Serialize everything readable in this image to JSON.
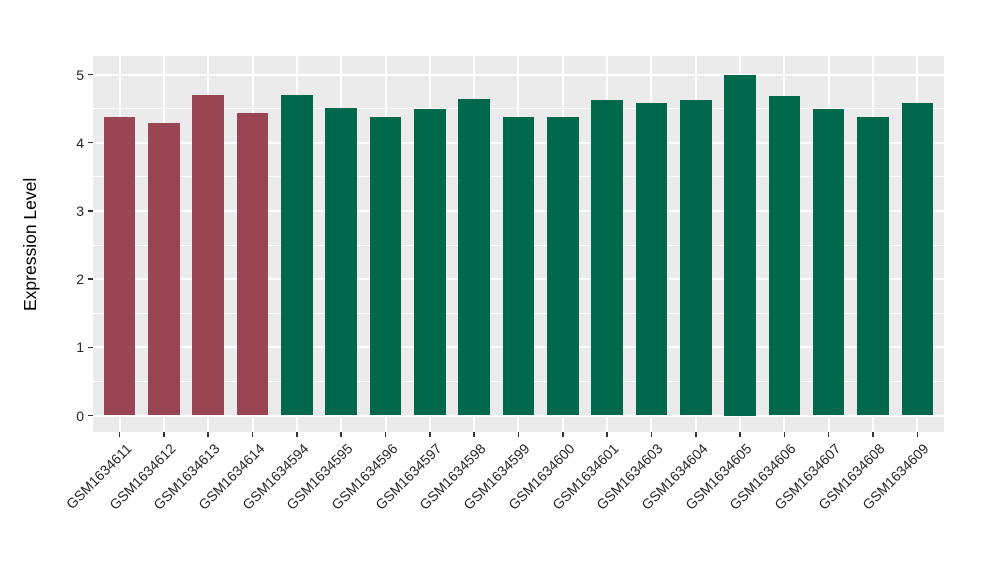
{
  "chart_data": {
    "type": "bar",
    "title": "",
    "xlabel": "",
    "ylabel": "Expression Level",
    "ylim": [
      0,
      5
    ],
    "yticks": [
      "0",
      "1",
      "2",
      "3",
      "4",
      "5"
    ],
    "grid": "major and minor horizontal, major vertical at each category",
    "legend_position": "none",
    "panel_bg": "#EBEBEB",
    "grid_color": "#FFFFFF",
    "axis_text_color": "#262626",
    "tick_mark_color": "#333333",
    "group_colors": {
      "highlight": "#9A4553",
      "default": "#00694B"
    },
    "bars": [
      {
        "label": "GSM1634611",
        "value": 4.37,
        "group": "highlight"
      },
      {
        "label": "GSM1634612",
        "value": 4.29,
        "group": "highlight"
      },
      {
        "label": "GSM1634613",
        "value": 4.7,
        "group": "highlight"
      },
      {
        "label": "GSM1634614",
        "value": 4.44,
        "group": "highlight"
      },
      {
        "label": "GSM1634594",
        "value": 4.7,
        "group": "default"
      },
      {
        "label": "GSM1634595",
        "value": 4.51,
        "group": "default"
      },
      {
        "label": "GSM1634596",
        "value": 4.37,
        "group": "default"
      },
      {
        "label": "GSM1634597",
        "value": 4.5,
        "group": "default"
      },
      {
        "label": "GSM1634598",
        "value": 4.64,
        "group": "default"
      },
      {
        "label": "GSM1634599",
        "value": 4.38,
        "group": "default"
      },
      {
        "label": "GSM1634600",
        "value": 4.37,
        "group": "default"
      },
      {
        "label": "GSM1634601",
        "value": 4.63,
        "group": "default"
      },
      {
        "label": "GSM1634603",
        "value": 4.58,
        "group": "default"
      },
      {
        "label": "GSM1634604",
        "value": 4.63,
        "group": "default"
      },
      {
        "label": "GSM1634605",
        "value": 5.0,
        "group": "default"
      },
      {
        "label": "GSM1634606",
        "value": 4.69,
        "group": "default"
      },
      {
        "label": "GSM1634607",
        "value": 4.5,
        "group": "default"
      },
      {
        "label": "GSM1634608",
        "value": 4.37,
        "group": "default"
      },
      {
        "label": "GSM1634609",
        "value": 4.58,
        "group": "default"
      }
    ]
  }
}
